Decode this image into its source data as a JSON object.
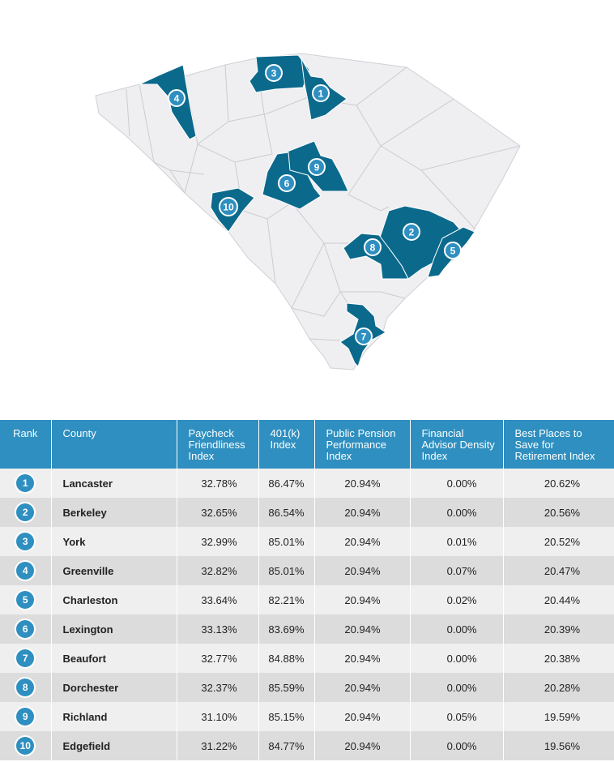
{
  "colors": {
    "highlight_fill": "#0b6a8c",
    "state_fill": "#efeff1",
    "border": "#c9c9cf",
    "badge": "#2e8fc0",
    "header_bg": "#2e8fc0"
  },
  "map": {
    "markers": [
      {
        "rank": "1",
        "county": "Lancaster"
      },
      {
        "rank": "2",
        "county": "Berkeley"
      },
      {
        "rank": "3",
        "county": "York"
      },
      {
        "rank": "4",
        "county": "Greenville"
      },
      {
        "rank": "5",
        "county": "Charleston"
      },
      {
        "rank": "6",
        "county": "Lexington"
      },
      {
        "rank": "7",
        "county": "Beaufort"
      },
      {
        "rank": "8",
        "county": "Dorchester"
      },
      {
        "rank": "9",
        "county": "Richland"
      },
      {
        "rank": "10",
        "county": "Edgefield"
      }
    ]
  },
  "table": {
    "headers": {
      "rank": "Rank",
      "county": "County",
      "paycheck": "Paycheck Friendliness Index",
      "k401": "401(k) Index",
      "pension": "Public Pension Performance Index",
      "advisor": "Financial Advisor Density Index",
      "best": "Best Places to Save for Retirement Index"
    },
    "rows": [
      {
        "rank": "1",
        "county": "Lancaster",
        "paycheck": "32.78%",
        "k401": "86.47%",
        "pension": "20.94%",
        "advisor": "0.00%",
        "best": "20.62%"
      },
      {
        "rank": "2",
        "county": "Berkeley",
        "paycheck": "32.65%",
        "k401": "86.54%",
        "pension": "20.94%",
        "advisor": "0.00%",
        "best": "20.56%"
      },
      {
        "rank": "3",
        "county": "York",
        "paycheck": "32.99%",
        "k401": "85.01%",
        "pension": "20.94%",
        "advisor": "0.01%",
        "best": "20.52%"
      },
      {
        "rank": "4",
        "county": "Greenville",
        "paycheck": "32.82%",
        "k401": "85.01%",
        "pension": "20.94%",
        "advisor": "0.07%",
        "best": "20.47%"
      },
      {
        "rank": "5",
        "county": "Charleston",
        "paycheck": "33.64%",
        "k401": "82.21%",
        "pension": "20.94%",
        "advisor": "0.02%",
        "best": "20.44%"
      },
      {
        "rank": "6",
        "county": "Lexington",
        "paycheck": "33.13%",
        "k401": "83.69%",
        "pension": "20.94%",
        "advisor": "0.00%",
        "best": "20.39%"
      },
      {
        "rank": "7",
        "county": "Beaufort",
        "paycheck": "32.77%",
        "k401": "84.88%",
        "pension": "20.94%",
        "advisor": "0.00%",
        "best": "20.38%"
      },
      {
        "rank": "8",
        "county": "Dorchester",
        "paycheck": "32.37%",
        "k401": "85.59%",
        "pension": "20.94%",
        "advisor": "0.00%",
        "best": "20.28%"
      },
      {
        "rank": "9",
        "county": "Richland",
        "paycheck": "31.10%",
        "k401": "85.15%",
        "pension": "20.94%",
        "advisor": "0.05%",
        "best": "19.59%"
      },
      {
        "rank": "10",
        "county": "Edgefield",
        "paycheck": "31.22%",
        "k401": "84.77%",
        "pension": "20.94%",
        "advisor": "0.00%",
        "best": "19.56%"
      }
    ]
  }
}
